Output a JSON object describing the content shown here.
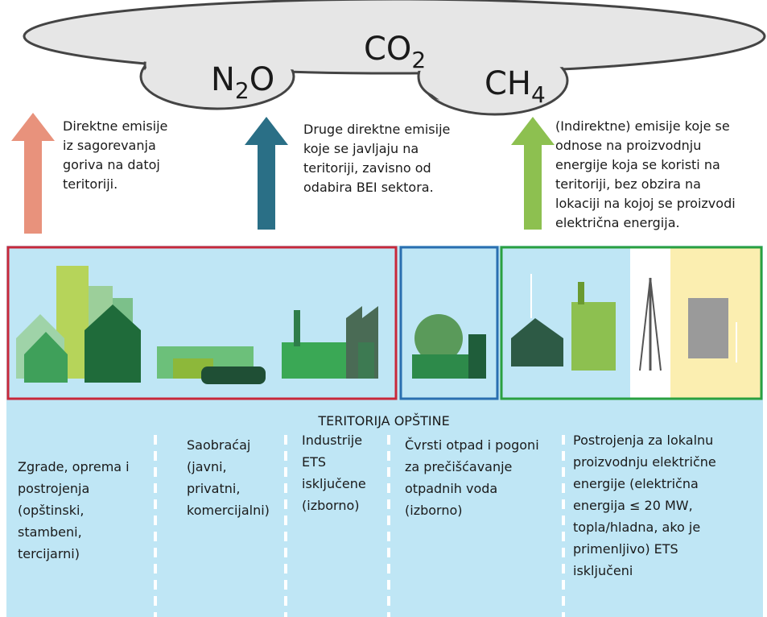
{
  "gases": [
    {
      "base": "N",
      "sub": "2",
      "tail": "O"
    },
    {
      "base": "CO",
      "sub": "2",
      "tail": ""
    },
    {
      "base": "CH",
      "sub": "4",
      "tail": ""
    }
  ],
  "arrows": [
    {
      "lines": [
        "Direktne emisije",
        "iz sagorevanja",
        "goriva na datoj",
        "teritoriji."
      ]
    },
    {
      "lines": [
        "Druge direktne emisije",
        "koje se javljaju na",
        "teritoriji, zavisno od",
        "odabira BEI sektora."
      ]
    },
    {
      "lines": [
        "(Indirektne) emisije koje se",
        "odnose na proizvodnju",
        "energije koja se koristi na",
        "teritoriji, bez obzira na",
        "lokaciji na kojoj se proizvodi",
        "električna energija."
      ]
    }
  ],
  "territory": {
    "label": "TERITORIJA OPŠTINE"
  },
  "columns": [
    {
      "lines": [
        "Zgrade, oprema i",
        "postrojenja",
        "(opštinski,",
        "stambeni,",
        "tercijarni)"
      ]
    },
    {
      "lines": [
        "Saobraćaj",
        "(javni,",
        "privatni,",
        "komercijalni)"
      ]
    },
    {
      "lines": [
        "Industrije",
        "ETS",
        "isključene",
        "(izborno)"
      ]
    },
    {
      "lines": [
        "Čvrsti otpad i pogoni",
        "za prečišćavanje",
        "otpadnih voda",
        "(izborno)"
      ]
    },
    {
      "lines": [
        "Postrojenja za lokalnu",
        "proizvodnju električne",
        "energije (električna",
        "energija ≤ 20 MW,",
        "topla/hladna, ako je",
        "primenljivo) ETS",
        "isključeni"
      ]
    }
  ]
}
